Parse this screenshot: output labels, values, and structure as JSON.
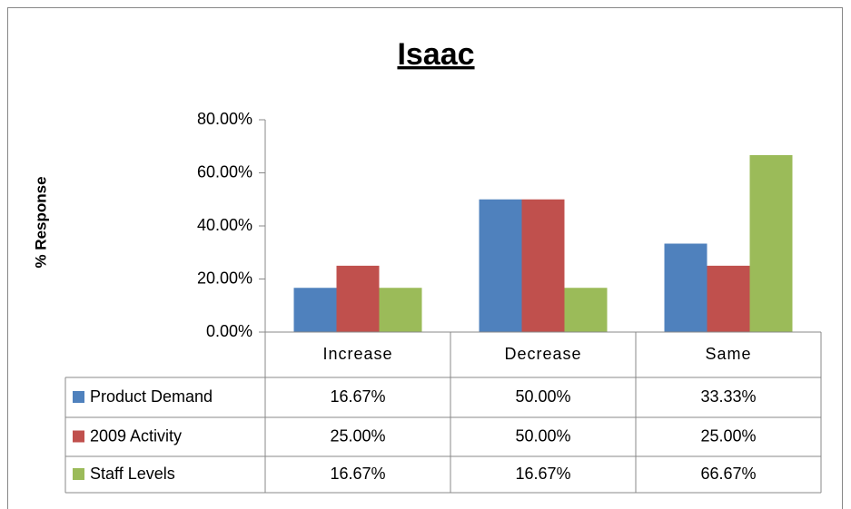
{
  "chart_data": {
    "type": "bar",
    "title": "Isaac",
    "y_label": "% Response",
    "categories": [
      "Increase",
      "Decrease",
      "Same"
    ],
    "series": [
      {
        "name": "Product Demand",
        "color": "#4f81bd",
        "values": [
          16.67,
          50,
          33.33
        ],
        "value_labels": [
          "16.67%",
          "50.00%",
          "33.33%"
        ]
      },
      {
        "name": "2009 Activity",
        "color": "#c0504d",
        "values": [
          25,
          50,
          25
        ],
        "value_labels": [
          "25.00%",
          "50.00%",
          "25.00%"
        ]
      },
      {
        "name": "Staff Levels",
        "color": "#9bbb59",
        "values": [
          16.67,
          16.67,
          66.67
        ],
        "value_labels": [
          "16.67%",
          "16.67%",
          "66.67%"
        ]
      }
    ],
    "ylim": [
      0,
      80
    ],
    "yticks": [
      {
        "value": 0,
        "label": "0.00%"
      },
      {
        "value": 20,
        "label": "20.00%"
      },
      {
        "value": 40,
        "label": "40.00%"
      },
      {
        "value": 60,
        "label": "60.00%"
      },
      {
        "value": 80,
        "label": "80.00%"
      }
    ],
    "grid": false
  }
}
